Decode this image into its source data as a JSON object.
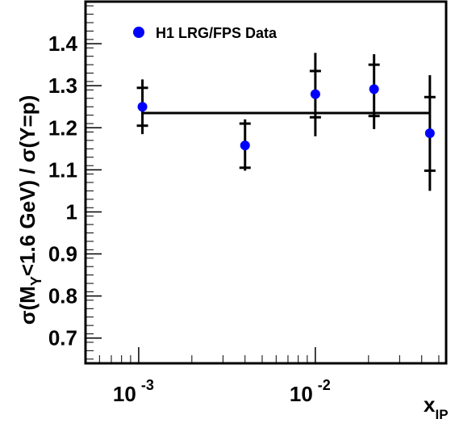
{
  "chart_data": {
    "type": "scatter",
    "xscale": "log",
    "xlim": [
      0.0005,
      0.055
    ],
    "ylim": [
      0.64,
      1.5
    ],
    "ylabel_parts": {
      "pre": "σ(M",
      "sub": "Y",
      "post": "<1.6 GeV) / σ(Y=p)"
    },
    "xlabel_parts": {
      "main": "x",
      "sub": "IP"
    },
    "yticks": [
      0.7,
      0.8,
      0.9,
      1,
      1.1,
      1.2,
      1.3,
      1.4
    ],
    "ytick_labels": [
      "0.7",
      "0.8",
      "0.9",
      "1",
      "1.1",
      "1.2",
      "1.3",
      "1.4"
    ],
    "xticks_major": [
      0.001,
      0.01
    ],
    "xtick_labels": [
      {
        "base": "10",
        "exp": "-3"
      },
      {
        "base": "10",
        "exp": "-2"
      }
    ],
    "grid": false,
    "legend_position": "top-left",
    "fit_value": 1.235,
    "series": [
      {
        "name": "H1 LRG/FPS Data",
        "color": "#0000ff",
        "points": [
          {
            "x": 0.00105,
            "y": 1.25,
            "stat_lo": 1.205,
            "stat_hi": 1.295,
            "tot_lo": 1.185,
            "tot_hi": 1.315
          },
          {
            "x": 0.004,
            "y": 1.158,
            "stat_lo": 1.105,
            "stat_hi": 1.21,
            "tot_lo": 1.098,
            "tot_hi": 1.22
          },
          {
            "x": 0.01,
            "y": 1.28,
            "stat_lo": 1.225,
            "stat_hi": 1.335,
            "tot_lo": 1.18,
            "tot_hi": 1.378
          },
          {
            "x": 0.0215,
            "y": 1.292,
            "stat_lo": 1.228,
            "stat_hi": 1.35,
            "tot_lo": 1.197,
            "tot_hi": 1.375
          },
          {
            "x": 0.0445,
            "y": 1.187,
            "stat_lo": 1.098,
            "stat_hi": 1.273,
            "tot_lo": 1.05,
            "tot_hi": 1.325
          }
        ]
      }
    ]
  }
}
